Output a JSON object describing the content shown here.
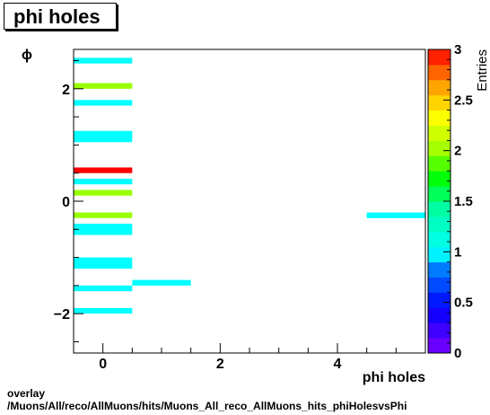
{
  "title": "phi holes",
  "caption": {
    "line1": "overlay",
    "line2": "/Muons/All/reco/AllMuons/hits/Muons_All_reco_AllMuons_hits_phiHolesvsPhi"
  },
  "chart_data": {
    "type": "heatmap",
    "title": "phi holes",
    "xlabel": "phi holes",
    "ylabel": "ϕ",
    "zlabel": "Entries",
    "xlim": [
      -0.5,
      5.5
    ],
    "ylim": [
      -2.7,
      2.7
    ],
    "zlim": [
      0,
      3
    ],
    "x_ticks": [
      "0",
      "2",
      "4"
    ],
    "x_tick_values": [
      0,
      2,
      4
    ],
    "y_ticks": [
      "−2",
      "0",
      "2"
    ],
    "y_tick_values": [
      -2,
      0,
      2
    ],
    "z_ticks": [
      "0",
      "0.5",
      "1",
      "1.5",
      "2",
      "2.5",
      "3"
    ],
    "z_tick_values": [
      0,
      0.5,
      1,
      1.5,
      2,
      2.5,
      3
    ],
    "cells": [
      {
        "x": 0,
        "y_low": 2.45,
        "y_high": 2.55,
        "value": 1
      },
      {
        "x": 0,
        "y_low": 2.0,
        "y_high": 2.1,
        "value": 2
      },
      {
        "x": 0,
        "y_low": 1.7,
        "y_high": 1.8,
        "value": 1
      },
      {
        "x": 0,
        "y_low": 1.05,
        "y_high": 1.25,
        "value": 1
      },
      {
        "x": 0,
        "y_low": 0.5,
        "y_high": 0.6,
        "value": 3
      },
      {
        "x": 0,
        "y_low": 0.3,
        "y_high": 0.4,
        "value": 1
      },
      {
        "x": 0,
        "y_low": 0.1,
        "y_high": 0.2,
        "value": 2
      },
      {
        "x": 0,
        "y_low": -0.3,
        "y_high": -0.2,
        "value": 2
      },
      {
        "x": 0,
        "y_low": -0.6,
        "y_high": -0.4,
        "value": 1
      },
      {
        "x": 0,
        "y_low": -1.2,
        "y_high": -1.0,
        "value": 1
      },
      {
        "x": 0,
        "y_low": -1.6,
        "y_high": -1.5,
        "value": 1
      },
      {
        "x": 0,
        "y_low": -2.0,
        "y_high": -1.9,
        "value": 1
      },
      {
        "x": 1,
        "y_low": -1.5,
        "y_high": -1.4,
        "value": 1
      },
      {
        "x": 5,
        "y_low": -0.3,
        "y_high": -0.2,
        "value": 1
      }
    ],
    "colors": {
      "low": "#7f00ff",
      "one": "#00ffff",
      "two": "#99ff00",
      "three": "#ff0000"
    }
  }
}
